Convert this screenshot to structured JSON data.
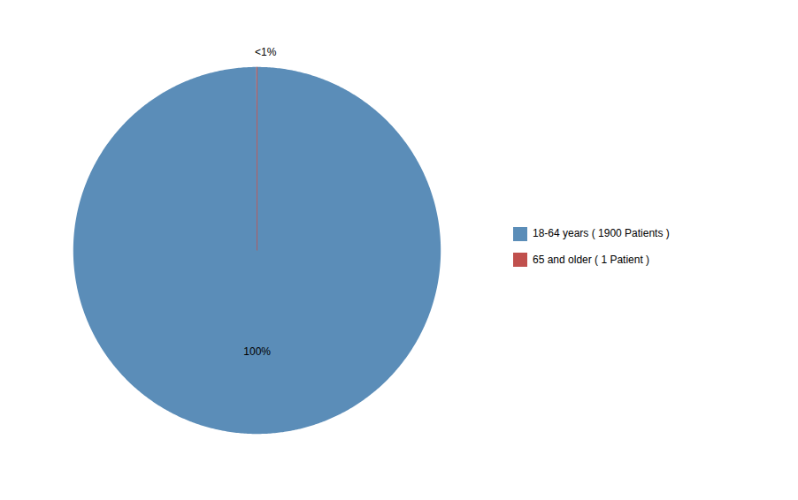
{
  "chart_data": {
    "type": "pie",
    "categories": [
      "18-64 years ( 1900 Patients )",
      "65 and older ( 1 Patient )"
    ],
    "values": [
      1900,
      1
    ],
    "colors": [
      "#5b8db8",
      "#c0504d"
    ],
    "annotations": [
      "100%",
      "<1%"
    ],
    "legend": "right"
  }
}
